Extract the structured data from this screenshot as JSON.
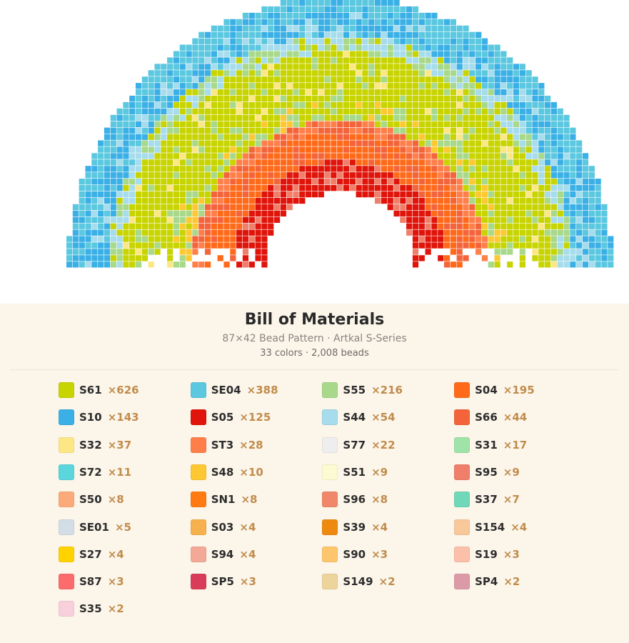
{
  "header": {
    "title": "Bill of Materials",
    "subtitle": "87×42 Bead Pattern · Artkal S-Series",
    "summary": "33 colors · 2,008 beads"
  },
  "materials": [
    {
      "code": "S61",
      "count": "×626",
      "color": "#c8d400"
    },
    {
      "code": "SE04",
      "count": "×388",
      "color": "#5bc8e0"
    },
    {
      "code": "S55",
      "count": "×216",
      "color": "#a8d98a"
    },
    {
      "code": "S04",
      "count": "×195",
      "color": "#ff6a1a"
    },
    {
      "code": "S10",
      "count": "×143",
      "color": "#3bb0e6"
    },
    {
      "code": "S05",
      "count": "×125",
      "color": "#e0140a"
    },
    {
      "code": "S44",
      "count": "×54",
      "color": "#a6dcec"
    },
    {
      "code": "S66",
      "count": "×44",
      "color": "#f4643a"
    },
    {
      "code": "S32",
      "count": "×37",
      "color": "#fce784"
    },
    {
      "code": "ST3",
      "count": "×28",
      "color": "#ff7f4a"
    },
    {
      "code": "S77",
      "count": "×22",
      "color": "#eeeeee"
    },
    {
      "code": "S31",
      "count": "×17",
      "color": "#9fe3a8"
    },
    {
      "code": "S72",
      "count": "×11",
      "color": "#5ad6dc"
    },
    {
      "code": "S48",
      "count": "×10",
      "color": "#fdc832"
    },
    {
      "code": "S51",
      "count": "×9",
      "color": "#fcfad0"
    },
    {
      "code": "S95",
      "count": "×9",
      "color": "#ef7f6a"
    },
    {
      "code": "S50",
      "count": "×8",
      "color": "#fcaa7a"
    },
    {
      "code": "SN1",
      "count": "×8",
      "color": "#ff7b12"
    },
    {
      "code": "S96",
      "count": "×8",
      "color": "#f0876a"
    },
    {
      "code": "S37",
      "count": "×7",
      "color": "#70d8b8"
    },
    {
      "code": "SE01",
      "count": "×5",
      "color": "#d3dde6"
    },
    {
      "code": "S03",
      "count": "×4",
      "color": "#f6b04e"
    },
    {
      "code": "S39",
      "count": "×4",
      "color": "#ee8a10"
    },
    {
      "code": "S154",
      "count": "×4",
      "color": "#f8c89a"
    },
    {
      "code": "S27",
      "count": "×4",
      "color": "#ffd200"
    },
    {
      "code": "S94",
      "count": "×4",
      "color": "#f4a898"
    },
    {
      "code": "S90",
      "count": "×3",
      "color": "#fec66c"
    },
    {
      "code": "S19",
      "count": "×3",
      "color": "#fcc0aa"
    },
    {
      "code": "S87",
      "count": "×3",
      "color": "#fc6c6c"
    },
    {
      "code": "SP5",
      "count": "×3",
      "color": "#d83c58"
    },
    {
      "code": "S149",
      "count": "×2",
      "color": "#ecd49a"
    },
    {
      "code": "SP4",
      "count": "×2",
      "color": "#dc9aa8"
    },
    {
      "code": "S35",
      "count": "×2",
      "color": "#f8d0dc"
    }
  ]
}
